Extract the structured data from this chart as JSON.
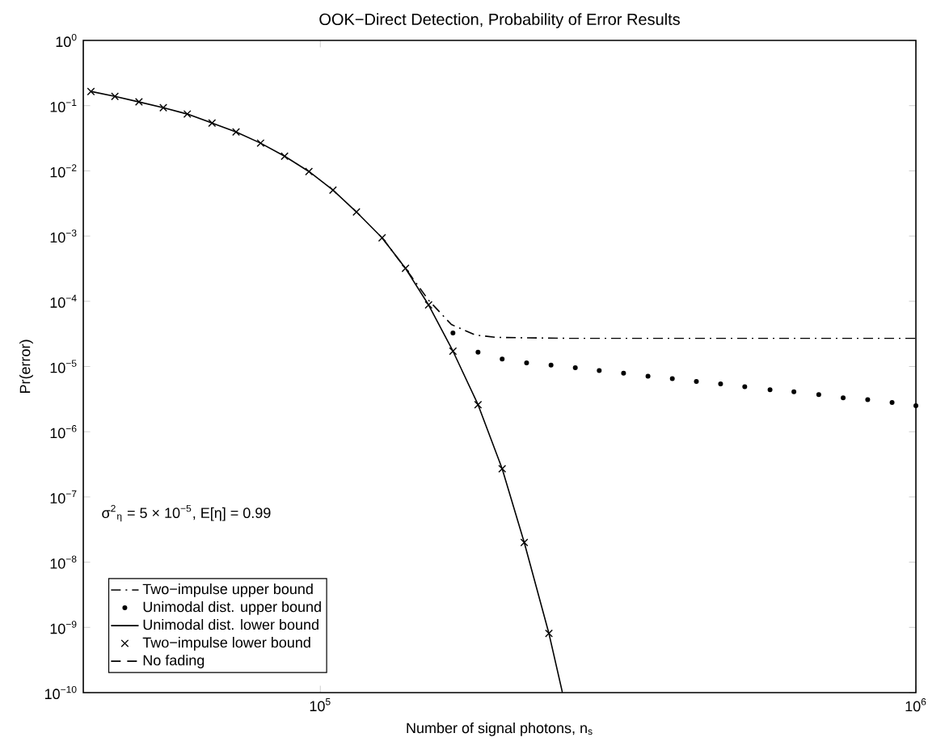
{
  "chart_data": {
    "type": "line",
    "title": "OOK−Direct Detection, Probability of Error Results",
    "xlabel": "Number of signal photons, n$_{s}$",
    "ylabel": "Pr(error)",
    "log": "xy",
    "xlim": [
      40000,
      1000000
    ],
    "ylim": [
      1e-10,
      1
    ],
    "xticks": [
      {
        "value": 100000,
        "label": "10$^{5}$"
      },
      {
        "value": 1000000,
        "label": "10$^{6}$"
      }
    ],
    "yticks": [
      {
        "value": 1e-10,
        "label": "10$^{−10}$"
      },
      {
        "value": 1e-09,
        "label": "10$^{−9}$"
      },
      {
        "value": 1e-08,
        "label": "10$^{−8}$"
      },
      {
        "value": 1e-07,
        "label": "10$^{−7}$"
      },
      {
        "value": 1e-06,
        "label": "10$^{−6}$"
      },
      {
        "value": 1e-05,
        "label": "10$^{−5}$"
      },
      {
        "value": 0.0001,
        "label": "10$^{−4}$"
      },
      {
        "value": 0.001,
        "label": "10$^{−3}$"
      },
      {
        "value": 0.01,
        "label": "10$^{−2}$"
      },
      {
        "value": 0.1,
        "label": "10$^{−1}$"
      },
      {
        "value": 1,
        "label": "10$^{0}$"
      }
    ],
    "grid": false,
    "legend": "bottom left",
    "annotations": [
      "σ$^{2}$$_{η}$ = 5 × 10$^{−5}$, E[η] = 0.99"
    ],
    "series": [
      {
        "name": "Two−impulse upper bound",
        "color": "#000000",
        "line_style": "dashdot",
        "marker": "none",
        "x": [
          127000,
          139000,
          152000,
          166000,
          182000,
          197000,
          258000,
          1000000
        ],
        "values": [
          0.00094,
          0.00032,
          0.000104,
          4.4e-05,
          3.05e-05,
          2.8e-05,
          2.7e-05,
          2.7e-05
        ]
      },
      {
        "name": "Unimodal dist. upper bound",
        "type": "scatter",
        "color": "#000000",
        "marker": "circle",
        "x": [
          167000,
          184000,
          202000,
          222000,
          244000,
          268000,
          294000,
          323000,
          355000,
          390000,
          428000,
          470000,
          516000,
          569000,
          624000,
          687000,
          755000,
          830000,
          912000,
          1000000
        ],
        "values": [
          3.27e-05,
          1.66e-05,
          1.3e-05,
          1.14e-05,
          1.05e-05,
          9.6e-06,
          8.7e-06,
          7.9e-06,
          7.1e-06,
          6.5e-06,
          5.9e-06,
          5.4e-06,
          4.9e-06,
          4.4e-06,
          4.1e-06,
          3.7e-06,
          3.3e-06,
          3.1e-06,
          2.8e-06,
          2.5e-06
        ]
      },
      {
        "name": "Unimodal dist. lower bound",
        "color": "#000000",
        "line_style": "solid",
        "marker": "none",
        "x": [
          41200,
          45200,
          49600,
          54500,
          59800,
          65800,
          72200,
          79400,
          87100,
          95700,
          105000,
          115000,
          127000,
          139000,
          152000,
          167000,
          184000,
          202000,
          220000,
          242000,
          255000
        ],
        "values": [
          0.165,
          0.139,
          0.114,
          0.093,
          0.0743,
          0.0542,
          0.0396,
          0.0266,
          0.0168,
          0.00977,
          0.00507,
          0.00234,
          0.00094,
          0.00032,
          8.8e-05,
          1.72e-05,
          2.6e-06,
          2.7e-07,
          2e-08,
          8.1e-10,
          1e-10
        ]
      },
      {
        "name": "Two−impulse lower bound",
        "type": "scatter",
        "color": "#000000",
        "marker": "cross",
        "x": [
          41200,
          45200,
          49600,
          54500,
          59800,
          65800,
          72200,
          79400,
          87100,
          95700,
          105000,
          115000,
          127000,
          139000,
          152000,
          167000,
          184000,
          202000,
          220000,
          242000
        ],
        "values": [
          0.165,
          0.139,
          0.114,
          0.093,
          0.0743,
          0.0542,
          0.0396,
          0.0266,
          0.0168,
          0.00977,
          0.00507,
          0.00234,
          0.00094,
          0.00032,
          8.8e-05,
          1.72e-05,
          2.6e-06,
          2.7e-07,
          2e-08,
          8.1e-10
        ]
      },
      {
        "name": "No fading",
        "color": "#000000",
        "line_style": "dashed",
        "marker": "none"
      }
    ]
  }
}
